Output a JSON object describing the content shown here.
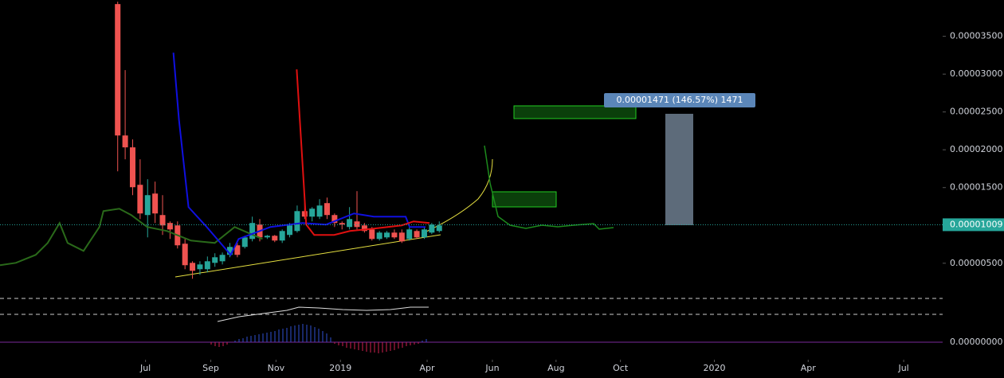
{
  "chart_data": {
    "type": "candlestick",
    "xlim": [
      -15.74,
      110
    ],
    "xticks": [
      {
        "value": 3.72,
        "label": "Jul"
      },
      {
        "value": 12.45,
        "label": "Sep"
      },
      {
        "value": 21.17,
        "label": "Nov"
      },
      {
        "value": 29.79,
        "label": "2019"
      },
      {
        "value": 41.38,
        "label": "Apr"
      },
      {
        "value": 50.11,
        "label": "Jun"
      },
      {
        "value": 58.62,
        "label": "Aug"
      },
      {
        "value": 67.23,
        "label": "Oct"
      },
      {
        "value": 79.79,
        "label": "2020"
      },
      {
        "value": 92.34,
        "label": "Apr"
      },
      {
        "value": 105.11,
        "label": "Jul"
      }
    ],
    "ylim": [
      1.4e-06,
      3.98e-05
    ],
    "yticks": [
      {
        "value": 5e-06,
        "label": "0.00000500"
      },
      {
        "value": 1.5e-05,
        "label": "0.00001500"
      },
      {
        "value": 2e-05,
        "label": "0.00002000"
      },
      {
        "value": 2.5e-05,
        "label": "0.00002500"
      },
      {
        "value": 3e-05,
        "label": "0.00003000"
      },
      {
        "value": 3.5e-05,
        "label": "0.00003500"
      }
    ],
    "up_color": "#26a69a",
    "down_color": "#ef5350",
    "x": [
      0,
      1,
      2,
      3,
      4,
      5,
      6,
      7,
      8,
      9,
      10,
      11,
      12,
      13,
      14,
      15,
      16,
      17,
      18,
      19,
      20,
      21,
      22,
      23,
      24,
      25,
      26,
      27,
      28,
      29,
      30,
      31,
      32,
      33,
      34,
      35,
      36,
      37,
      38,
      39,
      40,
      41,
      42,
      43
    ],
    "open": [
      3.926e-05,
      2.189e-05,
      2.032e-05,
      1.537e-05,
      1.137e-05,
      1.421e-05,
      1.137e-05,
      1.032e-05,
      1e-05,
      7.58e-06,
      5.05e-06,
      4.21e-06,
      4.21e-06,
      5.05e-06,
      5.26e-06,
      6.11e-06,
      7.37e-06,
      7.16e-06,
      8.21e-06,
      1.011e-05,
      8.42e-06,
      8.63e-06,
      8e-06,
      8.74e-06,
      9.26e-06,
      1.189e-05,
      1.116e-05,
      1.116e-05,
      1.295e-05,
      1.137e-05,
      1.032e-05,
      9.79e-06,
      1.053e-05,
      1e-05,
      9.47e-06,
      8.21e-06,
      8.42e-06,
      9.05e-06,
      9.05e-06,
      8.21e-06,
      9.26e-06,
      8.42e-06,
      9.05e-06,
      9.26e-06
    ],
    "high": [
      3.958e-05,
      3.053e-05,
      2.137e-05,
      1.874e-05,
      1.611e-05,
      1.579e-05,
      1.4e-05,
      1.053e-05,
      1.053e-05,
      8.21e-06,
      5.26e-06,
      5.26e-06,
      5.89e-06,
      6.32e-06,
      6.42e-06,
      7.68e-06,
      7.68e-06,
      8.63e-06,
      1.116e-05,
      1.084e-05,
      8.74e-06,
      8.74e-06,
      9.47e-06,
      1.032e-05,
      1.263e-05,
      1.368e-05,
      1.242e-05,
      1.347e-05,
      1.368e-05,
      1.158e-05,
      1.053e-05,
      1.242e-05,
      1.453e-05,
      1.032e-05,
      9.79e-06,
      9.26e-06,
      9.26e-06,
      9.47e-06,
      9.47e-06,
      9.79e-06,
      9.47e-06,
      9.79e-06,
      1.032e-05,
      1.053e-05
    ],
    "low": [
      1.716e-05,
      1.874e-05,
      1.4e-05,
      1.084e-05,
      8.42e-06,
      1.032e-05,
      8.74e-06,
      8.21e-06,
      6.95e-06,
      4.21e-06,
      2.95e-06,
      3.47e-06,
      3.79e-06,
      4.53e-06,
      4.84e-06,
      5.79e-06,
      5.79e-06,
      6.95e-06,
      7.89e-06,
      7.89e-06,
      8.21e-06,
      7.79e-06,
      7.68e-06,
      8.42e-06,
      9.05e-06,
      1.084e-05,
      1.053e-05,
      1.084e-05,
      1.084e-05,
      9.79e-06,
      9.47e-06,
      9.47e-06,
      9.47e-06,
      9.05e-06,
      8e-06,
      8e-06,
      8.21e-06,
      8.21e-06,
      7.68e-06,
      8e-06,
      8.21e-06,
      8.21e-06,
      8.84e-06,
      9.05e-06
    ],
    "close": [
      2.189e-05,
      2.032e-05,
      1.505e-05,
      1.158e-05,
      1.4e-05,
      1.158e-05,
      1e-05,
      9.47e-06,
      7.37e-06,
      4.74e-06,
      4e-06,
      4.84e-06,
      5.26e-06,
      5.79e-06,
      6.11e-06,
      7.16e-06,
      6.11e-06,
      8.42e-06,
      1.032e-05,
      8.42e-06,
      8.63e-06,
      8e-06,
      9.26e-06,
      1e-05,
      1.189e-05,
      1.116e-05,
      1.221e-05,
      1.263e-05,
      1.137e-05,
      1.032e-05,
      1.011e-05,
      1.084e-05,
      9.79e-06,
      9.26e-06,
      8.21e-06,
      9.05e-06,
      9.05e-06,
      8.42e-06,
      7.89e-06,
      9.47e-06,
      8.42e-06,
      9.47e-06,
      1.011e-05,
      1e-05
    ],
    "series": [
      {
        "color": "#2a6a1a",
        "x": [
          -15.74,
          -13.62,
          -10.96,
          -9.36,
          -7.77,
          -6.7,
          -4.57,
          -2.45,
          -1.91,
          0.21,
          1.81,
          3.94,
          6.6,
          9.79,
          12.98,
          15.64,
          19.36
        ],
        "values": [
          4.74e-06,
          5.05e-06,
          6.11e-06,
          7.68e-06,
          1.032e-05,
          7.68e-06,
          6.63e-06,
          9.79e-06,
          1.189e-05,
          1.221e-05,
          1.137e-05,
          9.79e-06,
          9.26e-06,
          8e-06,
          7.68e-06,
          9.79e-06,
          8.21e-06
        ]
      },
      {
        "color": "#1010e0",
        "x": [
          7.45,
          8.19,
          9.47,
          11.91,
          15.11,
          16.17,
          20.43,
          24.68,
          27.87,
          31.6,
          34.26,
          38.51,
          39.04,
          41.17
        ],
        "values": [
          3.284e-05,
          2.4e-05,
          1.242e-05,
          9.79e-06,
          6.11e-06,
          8.21e-06,
          9.79e-06,
          1.032e-05,
          1.011e-05,
          1.158e-05,
          1.116e-05,
          1.116e-05,
          9.79e-06,
          9.79e-06
        ]
      },
      {
        "color": "#e01010",
        "x": [
          23.94,
          24.68,
          25.21,
          26.28,
          28.94,
          31.06,
          34.26,
          37.98,
          39.57,
          41.7
        ],
        "values": [
          3.063e-05,
          1.874e-05,
          1.011e-05,
          8.74e-06,
          8.74e-06,
          9.26e-06,
          9.58e-06,
          1e-05,
          1.053e-05,
          1.032e-05
        ]
      }
    ],
    "last_price": {
      "value": 1.009e-05,
      "label": "0.00001009"
    },
    "measure_label": "0.00001471 (146.57%) 1471",
    "oscillator_zero_label": "0.00000000"
  }
}
